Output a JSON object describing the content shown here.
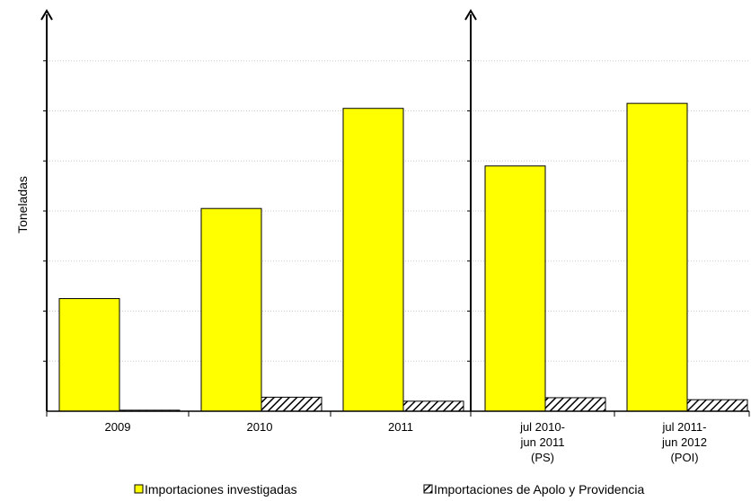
{
  "chart_data": {
    "type": "bar",
    "ylabel": "Toneladas",
    "ylim": [
      0,
      8
    ],
    "grid": true,
    "legend_position": "bottom",
    "y_ticks_labeled": false,
    "categories": [
      {
        "label": [
          "2009"
        ]
      },
      {
        "label": [
          "2010"
        ]
      },
      {
        "label": [
          "2011"
        ]
      },
      {
        "label": [
          "jul 2010-",
          "jun 2011",
          "(PS)"
        ]
      },
      {
        "label": [
          "jul 2011-",
          "jun 2012",
          "(POI)"
        ]
      }
    ],
    "series": [
      {
        "name": "Importaciones investigadas",
        "color": "#ffff00",
        "pattern": "solid",
        "values": [
          2.25,
          4.05,
          6.05,
          4.9,
          6.15
        ]
      },
      {
        "name": "Importaciones de Apolo y Providencia",
        "color": "#ffffff",
        "pattern": "hatched",
        "values": [
          0.02,
          0.28,
          0.2,
          0.27,
          0.23
        ]
      }
    ],
    "panels": [
      {
        "categories": [
          0,
          1,
          2
        ]
      },
      {
        "categories": [
          3,
          4
        ]
      }
    ]
  }
}
